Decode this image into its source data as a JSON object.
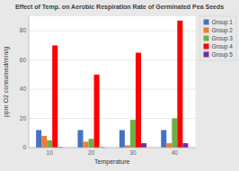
{
  "chart_data": {
    "type": "bar",
    "title": "Effect of Temp. on Aerobic Respiration Rate of Germinated Pea Seeds",
    "xlabel": "Temperature",
    "ylabel": "ppm O2 consumed/min/g",
    "categories": [
      "10",
      "20",
      "30",
      "40"
    ],
    "series": [
      {
        "name": "Group 1",
        "color": "#4472c4",
        "values": [
          12,
          12,
          12,
          12
        ]
      },
      {
        "name": "Group 2",
        "color": "#ed7d31",
        "values": [
          8,
          4,
          1.5,
          3
        ]
      },
      {
        "name": "Group 3",
        "color": "#70ad47",
        "values": [
          5,
          6,
          19,
          20
        ]
      },
      {
        "name": "Group 4",
        "color": "#ff0000",
        "values": [
          70,
          50,
          65,
          87
        ]
      },
      {
        "name": "Group 5",
        "color": "#7030a0",
        "values": [
          0.3,
          0.3,
          3,
          3
        ]
      }
    ],
    "ylim": [
      0,
      90
    ],
    "yticks": [
      0,
      20,
      40,
      60,
      80
    ],
    "grid": true,
    "legend": "upper right"
  }
}
